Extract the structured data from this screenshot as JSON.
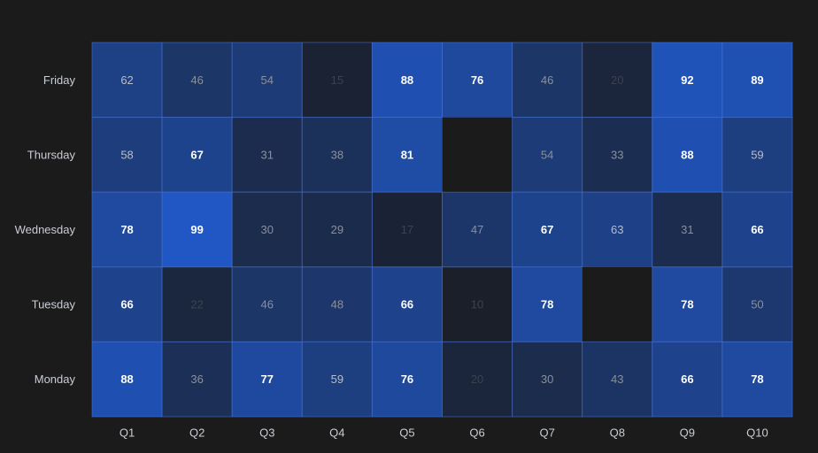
{
  "chart_data": {
    "type": "heatmap",
    "title": "",
    "xlabel": "",
    "ylabel": "",
    "x_categories": [
      "Q1",
      "Q2",
      "Q3",
      "Q4",
      "Q5",
      "Q6",
      "Q7",
      "Q8",
      "Q9",
      "Q10"
    ],
    "y_categories": [
      "Friday",
      "Thursday",
      "Wednesday",
      "Tuesday",
      "Monday"
    ],
    "values": [
      [
        62,
        46,
        54,
        15,
        88,
        76,
        46,
        20,
        92,
        89
      ],
      [
        58,
        67,
        31,
        38,
        81,
        null,
        54,
        33,
        88,
        59
      ],
      [
        78,
        99,
        30,
        29,
        17,
        47,
        67,
        63,
        31,
        66
      ],
      [
        66,
        22,
        46,
        48,
        66,
        10,
        78,
        null,
        78,
        50
      ],
      [
        88,
        36,
        77,
        59,
        76,
        20,
        30,
        43,
        66,
        78
      ]
    ],
    "value_range": [
      10,
      99
    ],
    "colors": {
      "background": "#1b1b1b",
      "low": "#1a1f2a",
      "high": "#2057c4",
      "cell_border": "#4a74d6",
      "empty": "#1b1b1b"
    }
  }
}
